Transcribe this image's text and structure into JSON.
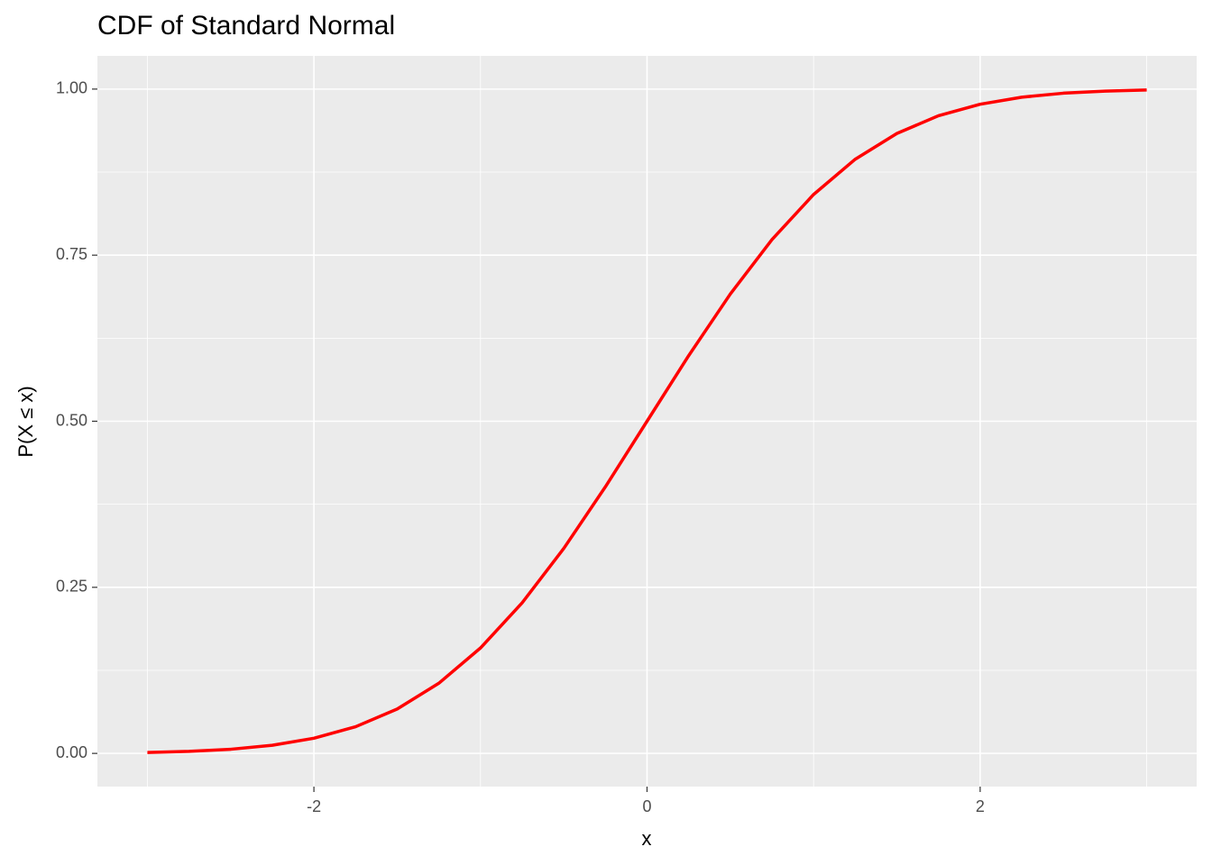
{
  "chart_data": {
    "type": "line",
    "title": "CDF of Standard Normal",
    "x_label": "x",
    "y_label": "P(X ≤ x)",
    "x": [
      -3,
      -2.75,
      -2.5,
      -2.25,
      -2,
      -1.75,
      -1.5,
      -1.25,
      -1,
      -0.75,
      -0.5,
      -0.25,
      0,
      0.25,
      0.5,
      0.75,
      1,
      1.25,
      1.5,
      1.75,
      2,
      2.25,
      2.5,
      2.75,
      3
    ],
    "series": [
      {
        "name": "CDF",
        "color": "#ff0000",
        "values": [
          0.0013,
          0.003,
          0.0062,
          0.0122,
          0.0228,
          0.0401,
          0.0668,
          0.1056,
          0.1587,
          0.2266,
          0.3085,
          0.4013,
          0.5,
          0.5987,
          0.6915,
          0.7734,
          0.8413,
          0.8944,
          0.9332,
          0.9599,
          0.9772,
          0.9878,
          0.9938,
          0.997,
          0.9987
        ]
      }
    ],
    "xlim": [
      -3.3,
      3.3
    ],
    "ylim": [
      -0.05,
      1.05
    ],
    "xticks": [
      -2,
      0,
      2
    ],
    "yticks": [
      {
        "value": 0,
        "label": "0.00"
      },
      {
        "value": 0.25,
        "label": "0.25"
      },
      {
        "value": 0.5,
        "label": "0.50"
      },
      {
        "value": 0.75,
        "label": "0.75"
      },
      {
        "value": 1,
        "label": "1.00"
      }
    ],
    "x_minor_breaks": [
      -3,
      -1,
      1,
      3
    ],
    "y_minor_breaks": [
      0.125,
      0.375,
      0.625,
      0.875
    ],
    "grid": true
  }
}
